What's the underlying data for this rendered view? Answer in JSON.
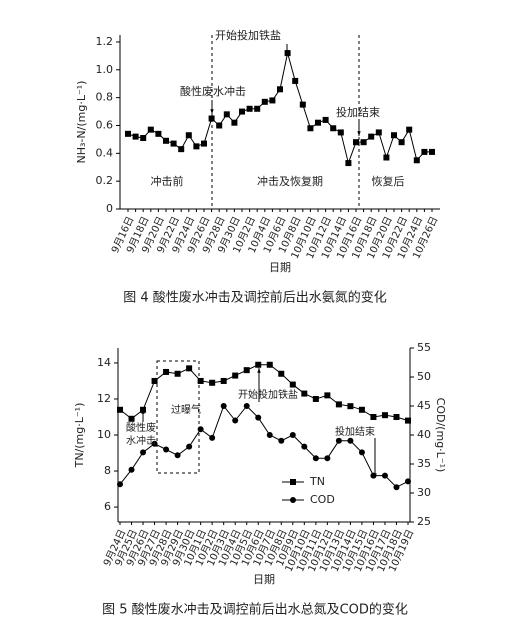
{
  "chart_data": [
    {
      "type": "line",
      "caption": "图 4 酸性废水冲击及调控前后出水氨氮的变化",
      "ylabel": "NH₃-N/(mg·L⁻¹)",
      "xlabel": "日期",
      "categories": [
        "9月16日",
        null,
        "9月18日",
        null,
        "9月20日",
        null,
        "9月22日",
        null,
        "9月24日",
        null,
        "9月26日",
        null,
        "9月28日",
        null,
        "9月30日",
        null,
        "10月2日",
        null,
        "10月4日",
        null,
        "10月6日",
        null,
        "10月8日",
        null,
        "10月10日",
        null,
        "10月12日",
        null,
        "10月14日",
        null,
        "10月16日",
        null,
        "10月18日",
        null,
        "10月20日",
        null,
        "10月22日",
        null,
        "10月24日",
        null,
        "10月26日"
      ],
      "series": [
        {
          "color": "#000000",
          "values": [
            0.54,
            0.52,
            0.51,
            0.57,
            0.54,
            0.49,
            0.47,
            0.43,
            0.53,
            0.45,
            0.47,
            0.65,
            0.6,
            0.68,
            0.62,
            0.7,
            0.72,
            0.72,
            0.77,
            0.78,
            0.86,
            1.12,
            0.92,
            0.75,
            0.58,
            0.62,
            0.64,
            0.58,
            0.55,
            0.33,
            0.48,
            0.48,
            0.52,
            0.55,
            0.37,
            0.53,
            0.48,
            0.57,
            0.35,
            0.41,
            0.41
          ]
        }
      ],
      "ylim": [
        0,
        1.25
      ],
      "yticks": [
        0,
        0.2,
        0.4,
        0.6,
        0.8,
        {
          "value": 1,
          "label": "1.0"
        },
        1.2
      ],
      "annotations": [
        "开始投加铁盐",
        "酸性废水冲击",
        "投加结束",
        "冲击前",
        "冲击及恢复期",
        "恢复后"
      ]
    },
    {
      "type": "line",
      "caption": "图 5 酸性废水冲击及调控前后出水总氮及COD的变化",
      "ylabel": "TN/(mg·L⁻¹)",
      "y2label": "COD/(mg·L⁻¹)",
      "xlabel": "日期",
      "categories": [
        "9月24日",
        "9月25日",
        "9月26日",
        "9月27日",
        "9月28日",
        "9月29日",
        "9月30日",
        "10月1日",
        "10月2日",
        "10月3日",
        "10月4日",
        "10月5日",
        "10月6日",
        "10月7日",
        "10月8日",
        "10月9日",
        "10月10日",
        "10月11日",
        "10月12日",
        "10月13日",
        "10月14日",
        "10月15日",
        "10月16日",
        "10月17日",
        "10月18日",
        "10月19日"
      ],
      "series": [
        {
          "name": "TN",
          "color": "#000000",
          "marker": "square",
          "values": [
            11.4,
            10.9,
            11.4,
            13.0,
            13.5,
            13.4,
            13.7,
            13.0,
            12.9,
            13.0,
            13.3,
            13.6,
            13.9,
            13.9,
            13.4,
            12.8,
            12.3,
            12.0,
            12.2,
            11.7,
            11.6,
            11.4,
            11.0,
            11.1,
            11.0,
            10.8
          ]
        },
        {
          "name": "COD",
          "color": "#000000",
          "marker": "circle",
          "axis": "y2",
          "values": [
            31.5,
            34,
            37,
            38.5,
            37.5,
            36.5,
            38,
            41,
            39.5,
            45,
            42.5,
            45,
            43,
            40,
            39,
            40,
            38,
            36,
            36,
            39,
            39,
            37,
            33,
            33,
            31,
            32
          ]
        }
      ],
      "ylim": [
        5.17,
        14.83
      ],
      "yticks": [
        6,
        8,
        10,
        12,
        14
      ],
      "y2lim": [
        25,
        55
      ],
      "y2ticks": [
        25,
        30,
        35,
        40,
        45,
        50,
        55
      ],
      "annotations": [
        [
          "酸性废",
          "水冲击"
        ],
        "过曝气",
        "开始投加铁盐",
        "投加结束"
      ]
    }
  ]
}
